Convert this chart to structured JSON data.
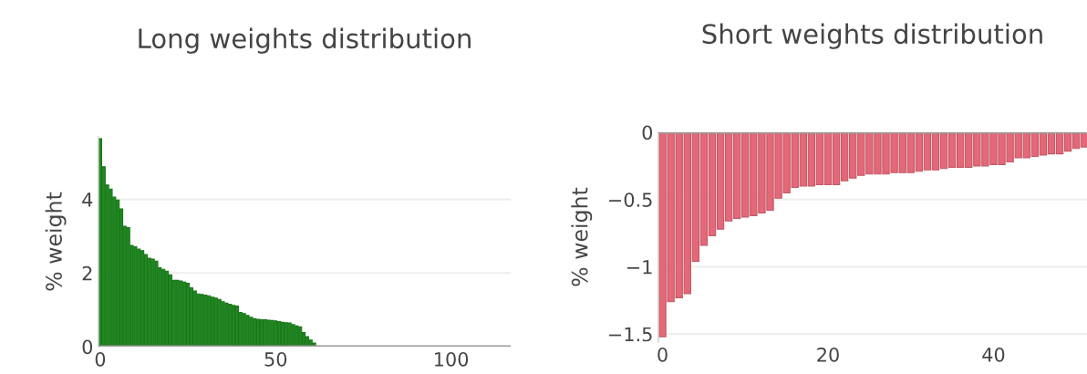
{
  "chart_data": [
    {
      "type": "bar",
      "title": "Long weights distribution",
      "ylabel": "% weight",
      "x": [
        0,
        1,
        2,
        3,
        4,
        5,
        6,
        7,
        8,
        9,
        10,
        11,
        12,
        13,
        14,
        15,
        16,
        17,
        18,
        19,
        20,
        21,
        22,
        23,
        24,
        25,
        26,
        27,
        28,
        29,
        30,
        31,
        32,
        33,
        34,
        35,
        36,
        37,
        38,
        39,
        40,
        41,
        42,
        43,
        44,
        45,
        46,
        47,
        48,
        49,
        50,
        51,
        52,
        53,
        54,
        55,
        56,
        57,
        58,
        59,
        60,
        61
      ],
      "values": [
        5.65,
        4.89,
        4.39,
        4.28,
        4.06,
        3.98,
        3.74,
        3.27,
        3.23,
        2.75,
        2.71,
        2.65,
        2.61,
        2.5,
        2.4,
        2.38,
        2.32,
        2.14,
        2.1,
        2.05,
        1.95,
        1.8,
        1.8,
        1.78,
        1.75,
        1.72,
        1.6,
        1.51,
        1.43,
        1.42,
        1.4,
        1.38,
        1.34,
        1.32,
        1.28,
        1.22,
        1.18,
        1.15,
        1.12,
        1.1,
        0.93,
        0.9,
        0.85,
        0.8,
        0.76,
        0.74,
        0.73,
        0.73,
        0.72,
        0.71,
        0.7,
        0.68,
        0.66,
        0.65,
        0.64,
        0.6,
        0.56,
        0.54,
        0.38,
        0.27,
        0.18,
        0.1
      ],
      "color": "#1f8a1f",
      "xlim": [
        -0.5,
        117
      ],
      "xticks": [
        0,
        50,
        100
      ],
      "ylim": [
        0,
        5.7
      ],
      "yticks": [
        0,
        2,
        4
      ],
      "grid": "y"
    },
    {
      "type": "bar",
      "title": "Short weights distribution",
      "ylabel": "% weight",
      "x": [
        0,
        1,
        2,
        3,
        4,
        5,
        6,
        7,
        8,
        9,
        10,
        11,
        12,
        13,
        14,
        15,
        16,
        17,
        18,
        19,
        20,
        21,
        22,
        23,
        24,
        25,
        26,
        27,
        28,
        29,
        30,
        31,
        32,
        33,
        34,
        35,
        36,
        37,
        38,
        39,
        40,
        41,
        42,
        43,
        44,
        45,
        46,
        47,
        48,
        49,
        50,
        51
      ],
      "values": [
        -1.52,
        -1.26,
        -1.23,
        -1.2,
        -0.96,
        -0.84,
        -0.77,
        -0.72,
        -0.66,
        -0.64,
        -0.63,
        -0.62,
        -0.6,
        -0.58,
        -0.49,
        -0.45,
        -0.41,
        -0.4,
        -0.4,
        -0.39,
        -0.39,
        -0.39,
        -0.36,
        -0.34,
        -0.32,
        -0.31,
        -0.31,
        -0.31,
        -0.3,
        -0.3,
        -0.3,
        -0.29,
        -0.28,
        -0.28,
        -0.27,
        -0.26,
        -0.26,
        -0.26,
        -0.25,
        -0.25,
        -0.24,
        -0.24,
        -0.22,
        -0.19,
        -0.19,
        -0.18,
        -0.17,
        -0.16,
        -0.16,
        -0.14,
        -0.12,
        -0.11
      ],
      "color": "#e46878",
      "xlim": [
        -0.5,
        51.3
      ],
      "xticks": [
        0,
        20,
        40
      ],
      "ylim": [
        -1.56,
        0
      ],
      "yticks": [
        {
          "value": -1.5,
          "label": "−1.5"
        },
        {
          "value": -1,
          "label": "−1"
        },
        {
          "value": -0.5,
          "label": "−0.5"
        },
        0
      ],
      "grid": "y"
    }
  ]
}
